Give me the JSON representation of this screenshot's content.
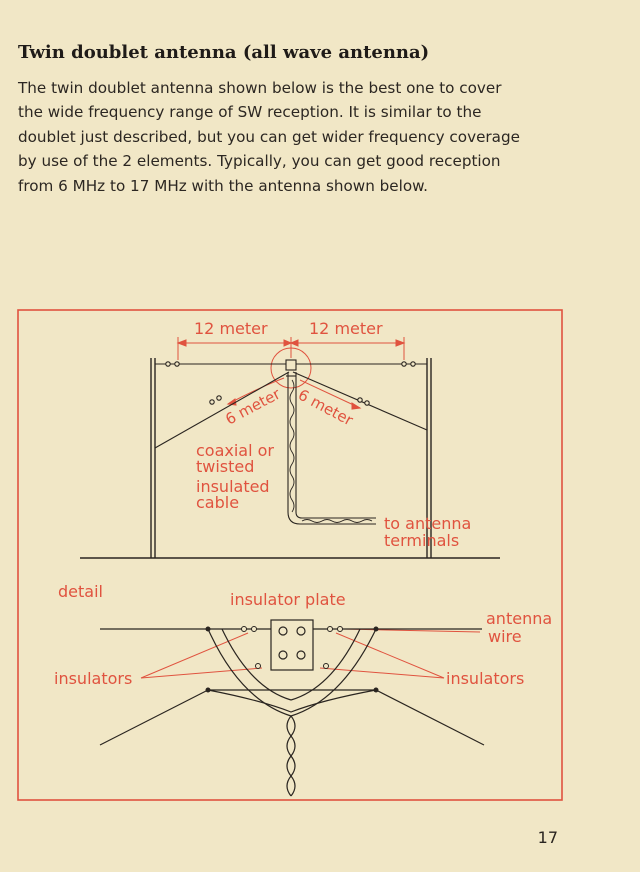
{
  "heading": "Twin doublet antenna (all wave antenna)",
  "paragraph_lines": [
    "The twin doublet antenna shown below is the best one to cover",
    "the wide frequency range of SW reception.  It is similar to the",
    "doublet just described, but you can get wider frequency coverage",
    "by use of the 2 elements.  Typically, you can get good reception",
    "from 6 MHz to 17 MHz with the antenna shown below."
  ],
  "figure": {
    "label_12m_left": "12 meter",
    "label_12m_right": "12 meter",
    "label_6m_left": "6 meter",
    "label_6m_right": "6 meter",
    "cable_lines": [
      "coaxial or",
      "twisted",
      "insulated",
      "cable"
    ],
    "terminal_lines": [
      "to antenna",
      "terminals"
    ],
    "detail": "detail",
    "insulator_plate": "insulator plate",
    "antenna_wire_lines": [
      "antenna",
      "wire"
    ],
    "insulators_left": "insulators",
    "insulators_right": "insulators"
  },
  "page_number": "17",
  "colors": {
    "paper": "#f1e7c6",
    "accent_red": "#e0533f",
    "ink": "#2a2520"
  }
}
